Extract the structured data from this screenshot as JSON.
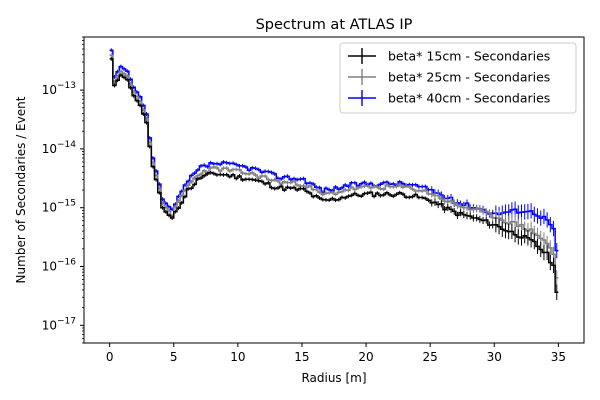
{
  "chart_data": {
    "type": "line",
    "title": "Spectrum at ATLAS IP",
    "xlabel": "Radius [m]",
    "ylabel": "Number of Secondaries / Event",
    "xlim": [
      -2,
      37
    ],
    "ylim": [
      5e-18,
      8e-13
    ],
    "yscale": "log",
    "grid": false,
    "legend_position": "top-right",
    "x_ticks": [
      0,
      5,
      10,
      15,
      20,
      25,
      30,
      35
    ],
    "x_tick_labels": [
      "0",
      "5",
      "10",
      "15",
      "20",
      "25",
      "30",
      "35"
    ],
    "y_ticks": [
      1e-17,
      1e-16,
      1e-15,
      1e-14,
      1e-13
    ],
    "y_tick_labels": [
      {
        "base": "10",
        "exp": "−17"
      },
      {
        "base": "10",
        "exp": "−16"
      },
      {
        "base": "10",
        "exp": "−15"
      },
      {
        "base": "10",
        "exp": "−14"
      },
      {
        "base": "10",
        "exp": "−13"
      }
    ],
    "bin_width": 0.25,
    "knots": [
      [
        0.0,
        3.4e-13
      ],
      [
        0.25,
        1.2e-13
      ],
      [
        0.75,
        1.8e-13
      ],
      [
        1.25,
        1.5e-13
      ],
      [
        1.75,
        8e-14
      ],
      [
        2.25,
        5.5e-14
      ],
      [
        2.75,
        2.8e-14
      ],
      [
        3.0,
        1.1e-14
      ],
      [
        3.25,
        5e-15
      ],
      [
        3.5,
        3e-15
      ],
      [
        3.75,
        1.8e-15
      ],
      [
        4.0,
        1e-15
      ],
      [
        4.25,
        8.5e-16
      ],
      [
        4.75,
        6.5e-16
      ],
      [
        5.0,
        8e-16
      ],
      [
        5.5,
        1.3e-15
      ],
      [
        6.0,
        2e-15
      ],
      [
        7.0,
        3.3e-15
      ],
      [
        8.0,
        3.8e-15
      ],
      [
        9.0,
        3.6e-15
      ],
      [
        10.0,
        3.3e-15
      ],
      [
        11.0,
        3e-15
      ],
      [
        12.0,
        2.6e-15
      ],
      [
        13.0,
        2.2e-15
      ],
      [
        14.0,
        2.1e-15
      ],
      [
        15.0,
        2e-15
      ],
      [
        15.75,
        1.6e-15
      ],
      [
        16.5,
        1.3e-15
      ],
      [
        17.5,
        1.4e-15
      ],
      [
        18.5,
        1.6e-15
      ],
      [
        20.0,
        1.7e-15
      ],
      [
        21.0,
        1.7e-15
      ],
      [
        22.5,
        1.7e-15
      ],
      [
        23.5,
        1.6e-15
      ],
      [
        25.0,
        1.3e-15
      ],
      [
        26.0,
        1e-15
      ],
      [
        27.0,
        8e-16
      ],
      [
        28.0,
        7e-16
      ],
      [
        29.0,
        6e-16
      ],
      [
        30.0,
        5e-16
      ],
      [
        31.0,
        4e-16
      ],
      [
        32.0,
        3.3e-16
      ],
      [
        33.0,
        2.5e-16
      ],
      [
        33.5,
        2e-16
      ],
      [
        34.0,
        1.6e-16
      ],
      [
        34.5,
        1e-16
      ],
      [
        34.75,
        4e-17
      ],
      [
        35.0,
        1.8e-17
      ]
    ],
    "series": [
      {
        "name": "beta* 15cm - Secondaries",
        "color": "#000000",
        "scale": 1.0,
        "scale_knots": [
          [
            0,
            1.0
          ],
          [
            35,
            1.0
          ]
        ],
        "seed": 11
      },
      {
        "name": "beta* 25cm - Secondaries",
        "color": "#808080",
        "scale": 1.25,
        "scale_knots": [
          [
            0,
            1.15
          ],
          [
            5,
            1.2
          ],
          [
            20,
            1.3
          ],
          [
            30,
            1.4
          ],
          [
            35,
            1.6
          ]
        ],
        "seed": 23
      },
      {
        "name": "beta* 40cm - Secondaries",
        "color": "#0000ff",
        "scale": 1.5,
        "scale_knots": [
          [
            0,
            1.4
          ],
          [
            5,
            1.4
          ],
          [
            10,
            1.55
          ],
          [
            20,
            1.5
          ],
          [
            30,
            1.55
          ],
          [
            35,
            4.5
          ]
        ],
        "seed": 37
      }
    ]
  }
}
